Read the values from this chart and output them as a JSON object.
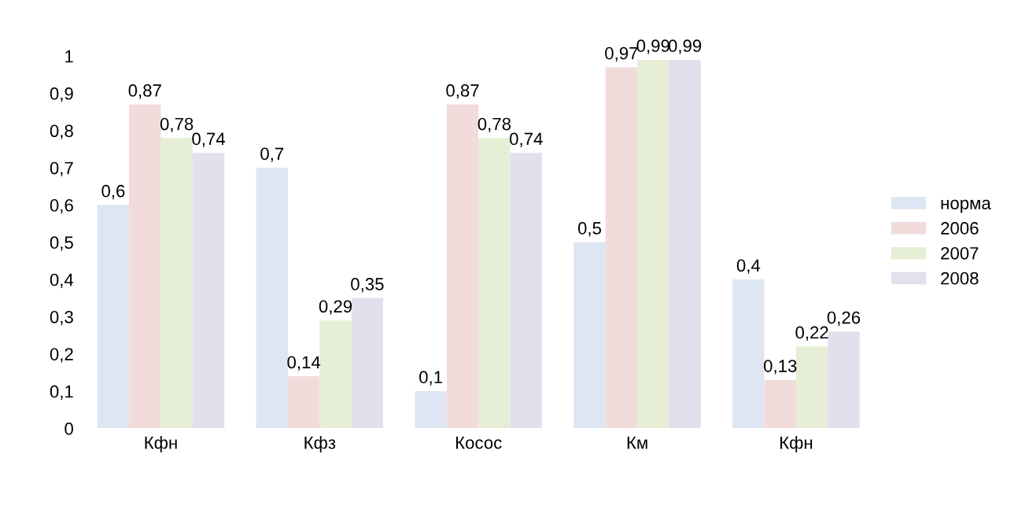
{
  "chart_data": {
    "type": "bar",
    "categories": [
      "Кфн",
      "Кфз",
      "Косос",
      "Км",
      "Кфн"
    ],
    "series": [
      {
        "name": "норма",
        "color": "#dde6f2",
        "values": [
          0.6,
          0.7,
          0.1,
          0.5,
          0.4
        ],
        "value_labels": [
          "0,6",
          "0,7",
          "0,1",
          "0,5",
          "0,4"
        ]
      },
      {
        "name": "2006",
        "color": "#f2dcdb",
        "values": [
          0.87,
          0.14,
          0.87,
          0.97,
          0.13
        ],
        "value_labels": [
          "0,87",
          "0,14",
          "0,87",
          "0,97",
          "0,13"
        ]
      },
      {
        "name": "2007",
        "color": "#e6eed6",
        "values": [
          0.78,
          0.29,
          0.78,
          0.99,
          0.22
        ],
        "value_labels": [
          "0,78",
          "0,29",
          "0,78",
          "0,99",
          "0,22"
        ]
      },
      {
        "name": "2008",
        "color": "#e4dfec",
        "values": [
          0.74,
          0.35,
          0.74,
          0.99,
          0.26
        ],
        "value_labels": [
          "0,74",
          "0,35",
          "0,74",
          "0,99",
          "0,26"
        ]
      }
    ],
    "ylim": [
      0,
      1
    ],
    "yticks": [
      0,
      {
        "value": 0.1,
        "label": "0,1"
      },
      {
        "value": 0.2,
        "label": "0,2"
      },
      {
        "value": 0.3,
        "label": "0,3"
      },
      {
        "value": 0.4,
        "label": "0,4"
      },
      {
        "value": 0.5,
        "label": "0,5"
      },
      {
        "value": 0.6,
        "label": "0,6"
      },
      {
        "value": 0.7,
        "label": "0,7"
      },
      {
        "value": 0.8,
        "label": "0,8"
      },
      {
        "value": 0.9,
        "label": "0,9"
      },
      1
    ],
    "grid": false,
    "legend": "right"
  }
}
